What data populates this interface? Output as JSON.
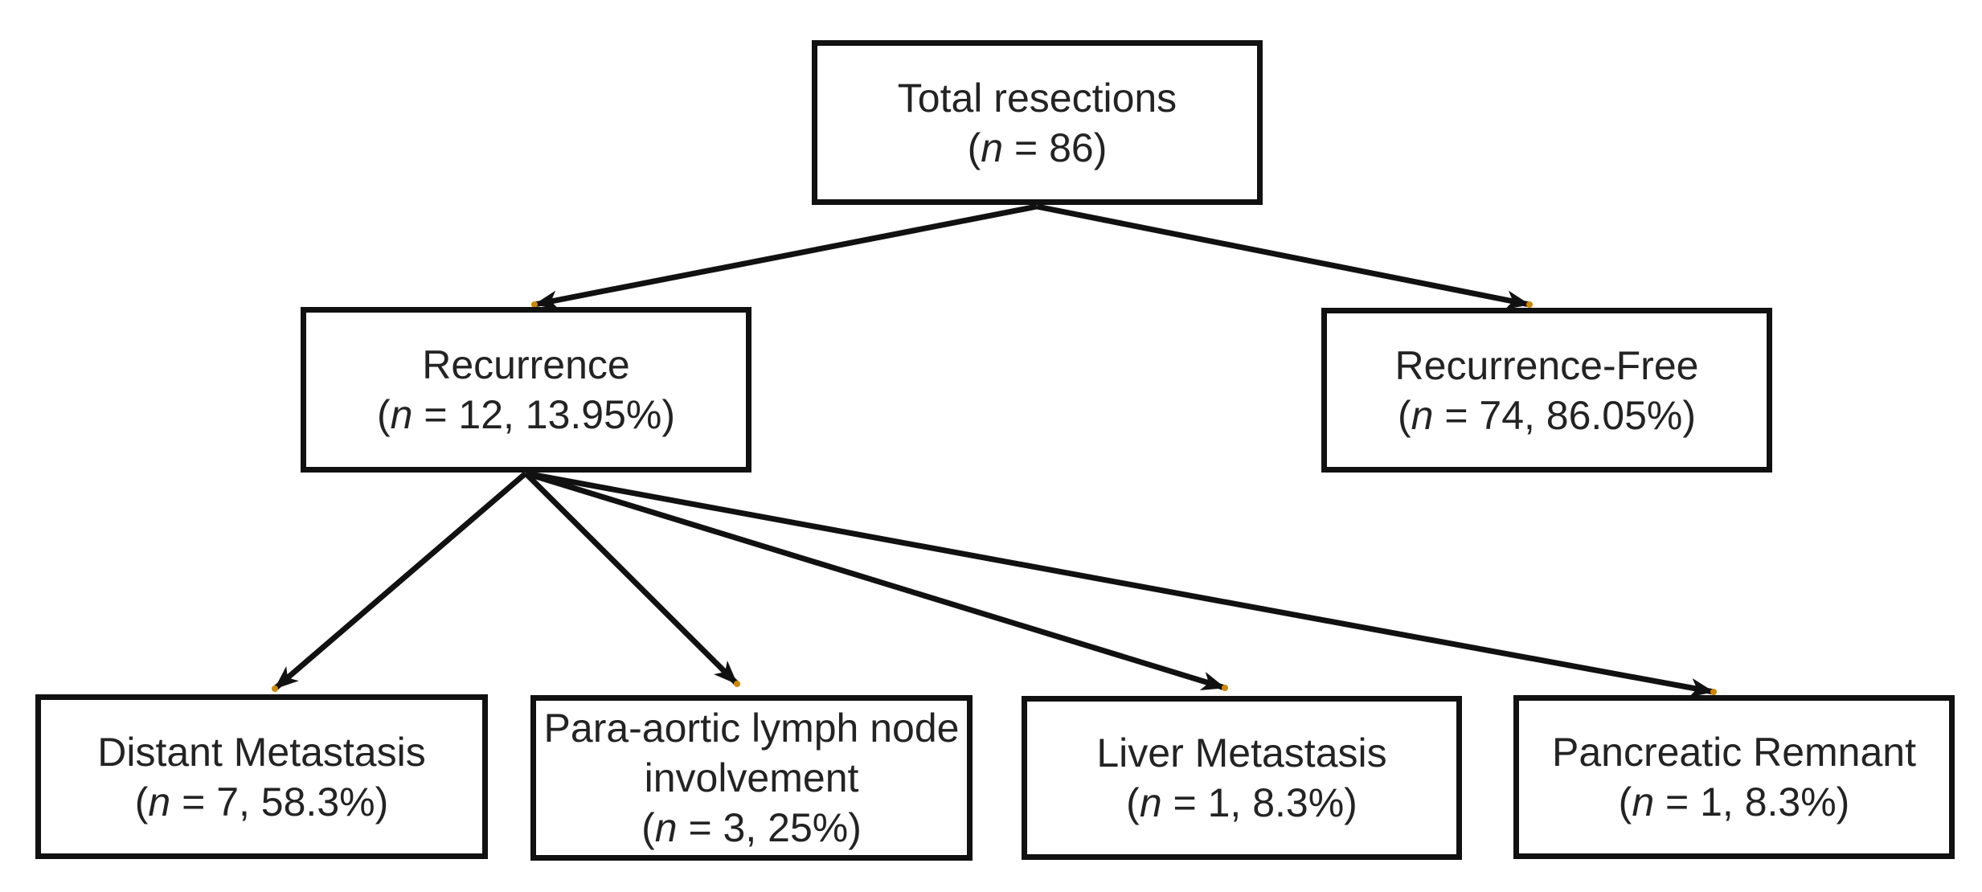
{
  "figure": {
    "kind": "flowchart",
    "background_color": "#ffffff",
    "box_border_color": "#111111",
    "text_color": "#232323",
    "arrow_color": "#111111",
    "anchor_dot_color": "#cf8600"
  },
  "nodes": {
    "total": {
      "label": "Total resections",
      "n": 86,
      "lines": [
        "Total resections",
        "(n = 86)"
      ]
    },
    "recurrence": {
      "label": "Recurrence",
      "n": 12,
      "percent": "13.95%",
      "lines": [
        "Recurrence",
        "(n = 12, 13.95%)"
      ]
    },
    "recurrence_free": {
      "label": "Recurrence-Free",
      "n": 74,
      "percent": "86.05%",
      "lines": [
        "Recurrence-Free",
        "(n = 74, 86.05%)"
      ]
    },
    "distant_metastasis": {
      "label": "Distant Metastasis",
      "n": 7,
      "percent": "58.3%",
      "lines": [
        "Distant Metastasis",
        "(n = 7, 58.3%)"
      ]
    },
    "para_aortic": {
      "label": "Para-aortic lymph node involvement",
      "n": 3,
      "percent": "25%",
      "lines": [
        "Para-aortic lymph node",
        "involvement",
        "(n = 3, 25%)"
      ]
    },
    "liver_metastasis": {
      "label": "Liver Metastasis",
      "n": 1,
      "percent": "8.3%",
      "lines": [
        "Liver Metastasis",
        "(n = 1, 8.3%)"
      ]
    },
    "pancreatic_remnant": {
      "label": "Pancreatic Remnant",
      "n": 1,
      "percent": "8.3%",
      "lines": [
        "Pancreatic Remnant",
        "(n = 1, 8.3%)"
      ]
    }
  },
  "edges": [
    {
      "from": "total",
      "to": "recurrence"
    },
    {
      "from": "total",
      "to": "recurrence_free"
    },
    {
      "from": "recurrence",
      "to": "distant_metastasis"
    },
    {
      "from": "recurrence",
      "to": "para_aortic"
    },
    {
      "from": "recurrence",
      "to": "liver_metastasis"
    },
    {
      "from": "recurrence",
      "to": "pancreatic_remnant"
    }
  ]
}
